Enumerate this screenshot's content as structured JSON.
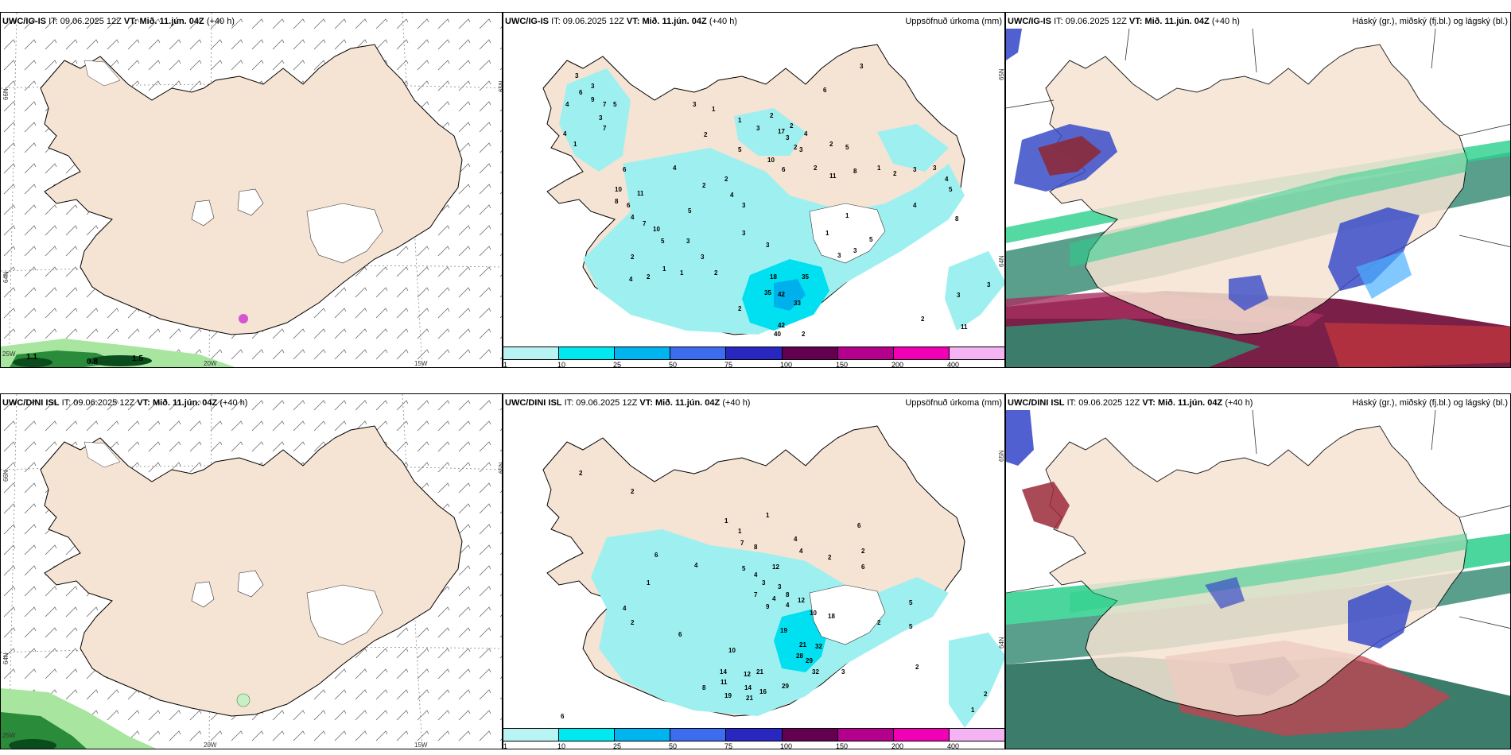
{
  "rows": [
    {
      "model": "UWC/IG-IS",
      "it_label": "IT:",
      "it": "09.06.2025 12Z",
      "vt_label": "VT:",
      "vt": "Mið. 11.jún. 04Z",
      "lead": "(+40 h)"
    },
    {
      "model": "UWC/DINI ISL",
      "it_label": "IT:",
      "it": "09.06.2025 12Z",
      "vt_label": "VT:",
      "vt": "Mið. 11.jún. 04Z",
      "lead": "(+40 h)"
    }
  ],
  "precip_title": "Uppsöfnuð úrkoma (mm)",
  "cloud_title": "Háský (gr.), miðský (fj.bl.) og lágský (bl.)",
  "wind_values_top": [
    "1.1",
    "0.8",
    "1.5"
  ],
  "lat_labels": [
    "66N",
    "64N",
    "65N"
  ],
  "lon_labels": [
    "25W",
    "20W",
    "15W"
  ],
  "colorbar": {
    "labels": [
      "1",
      "10",
      "25",
      "50",
      "75",
      "100",
      "150",
      "200",
      "400"
    ],
    "colors": [
      "#b8f4f4",
      "#00e8f0",
      "#00b4f0",
      "#3c6cf0",
      "#2828c0",
      "#640050",
      "#b4008c",
      "#f000b4",
      "#f4b4f4"
    ]
  },
  "precip_values_top": [
    "3",
    "6",
    "3",
    "4",
    "9",
    "7",
    "5",
    "3",
    "7",
    "4",
    "6",
    "1",
    "1",
    "2",
    "3",
    "17",
    "2",
    "3",
    "4",
    "2",
    "5",
    "10",
    "3",
    "2",
    "5",
    "6",
    "2",
    "11",
    "8",
    "1",
    "2",
    "3",
    "3",
    "4",
    "5",
    "10",
    "11",
    "2",
    "4",
    "3",
    "8",
    "6",
    "7",
    "10",
    "4",
    "5",
    "3",
    "3",
    "2",
    "1",
    "1",
    "2",
    "4",
    "2",
    "3",
    "3",
    "18",
    "35",
    "42",
    "33",
    "35",
    "2",
    "40",
    "42",
    "2",
    "3",
    "3",
    "5",
    "11",
    "3",
    "2",
    "1",
    "1",
    "3"
  ],
  "precip_values_bottom": [
    "2",
    "2",
    "1",
    "1",
    "7",
    "8",
    "1",
    "4",
    "4",
    "2",
    "6",
    "2",
    "6",
    "4",
    "5",
    "12",
    "4",
    "3",
    "3",
    "8",
    "4",
    "7",
    "1",
    "12",
    "10",
    "18",
    "19",
    "21",
    "32",
    "28",
    "29",
    "32",
    "10",
    "14",
    "12",
    "21",
    "11",
    "14",
    "16",
    "29",
    "19",
    "21",
    "8",
    "6",
    "2",
    "4",
    "2",
    "5",
    "5",
    "2",
    "2",
    "1",
    "6",
    "3",
    "9",
    "4",
    "6"
  ],
  "precip_dot_values_top": [
    "3",
    "1",
    "2",
    "6",
    "3",
    "4",
    "8",
    "2",
    "5",
    "4"
  ]
}
